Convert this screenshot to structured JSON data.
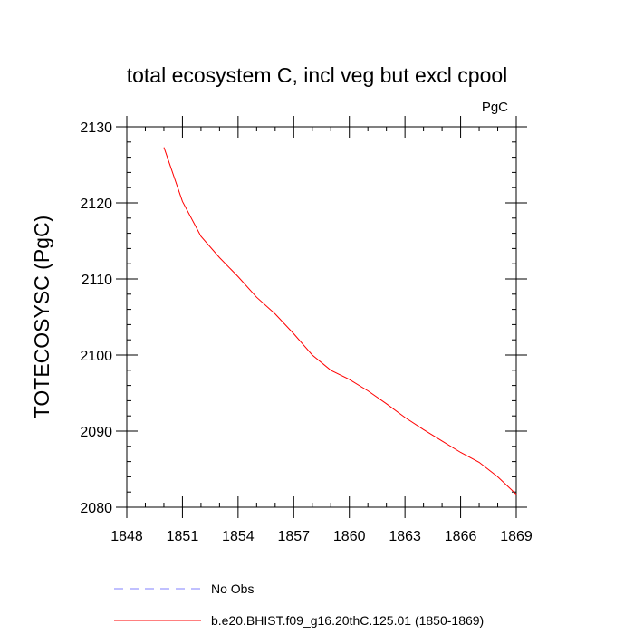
{
  "chart_data": {
    "type": "line",
    "title": "total ecosystem C, incl veg but excl cpool",
    "units": "PgC",
    "xlabel": "",
    "ylabel": "TOTECOSYSC  (PgC)",
    "xlim": [
      1848,
      1869
    ],
    "ylim": [
      2080,
      2130
    ],
    "x_ticks": [
      1848,
      1851,
      1854,
      1857,
      1860,
      1863,
      1866,
      1869
    ],
    "x_tick_labels": [
      "1848",
      "1851",
      "1854",
      "1857",
      "1860",
      "1863",
      "1866",
      "1869"
    ],
    "y_ticks": [
      2080,
      2090,
      2100,
      2110,
      2120,
      2130
    ],
    "y_tick_labels": [
      "2080",
      "2090",
      "2100",
      "2110",
      "2120",
      "2130"
    ],
    "grid": false,
    "legend_position": "bottom",
    "series": [
      {
        "name": "No Obs",
        "color": "#8080ff",
        "dash": "dashed",
        "x": [],
        "y": []
      },
      {
        "name": "b.e20.BHIST.f09_g16.20thC.125.01 (1850-1869)",
        "color": "#ff0000",
        "dash": "solid",
        "x": [
          1850,
          1851,
          1852,
          1853,
          1854,
          1855,
          1856,
          1857,
          1858,
          1859,
          1860,
          1861,
          1862,
          1863,
          1864,
          1865,
          1866,
          1867,
          1868,
          1869
        ],
        "y": [
          2127.3,
          2120.2,
          2115.6,
          2112.8,
          2110.3,
          2107.6,
          2105.4,
          2102.8,
          2100.0,
          2098.0,
          2096.8,
          2095.3,
          2093.6,
          2091.8,
          2090.2,
          2088.7,
          2087.2,
          2085.9,
          2084.0,
          2081.7
        ]
      }
    ]
  }
}
